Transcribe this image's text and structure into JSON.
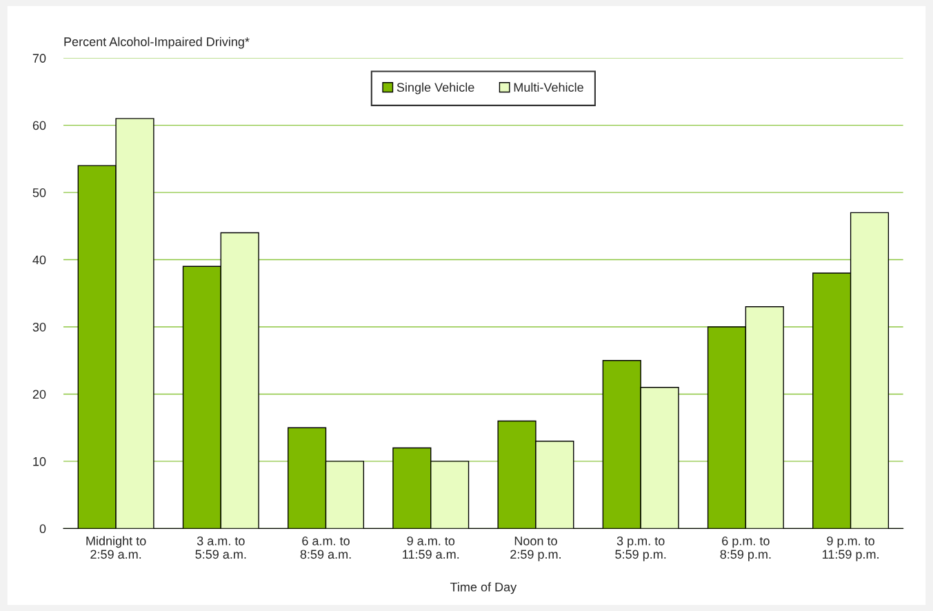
{
  "chart_data": {
    "type": "bar",
    "ylabel": "Percent Alcohol-Impaired Driving*",
    "xlabel": "Time of Day",
    "categories": [
      "Midnight to\n2:59 a.m.",
      "3 a.m. to\n5:59 a.m.",
      "6 a.m. to\n8:59 a.m.",
      "9 a.m. to\n11:59 a.m.",
      "Noon to\n2:59 p.m.",
      "3 p.m. to\n5:59 p.m.",
      "6 p.m. to\n8:59 p.m.",
      "9 p.m. to\n11:59 p.m."
    ],
    "series": [
      {
        "name": "Single Vehicle",
        "color": "#7fba00",
        "values": [
          54,
          39,
          15,
          12,
          16,
          25,
          30,
          38
        ]
      },
      {
        "name": "Multi-Vehicle",
        "color": "#e8fcc0",
        "values": [
          61,
          44,
          10,
          10,
          13,
          21,
          33,
          47
        ]
      }
    ],
    "ylim": [
      0,
      70
    ],
    "yticks": [
      0,
      10,
      20,
      30,
      40,
      50,
      60,
      70
    ],
    "grid": "y",
    "legend": "top"
  }
}
